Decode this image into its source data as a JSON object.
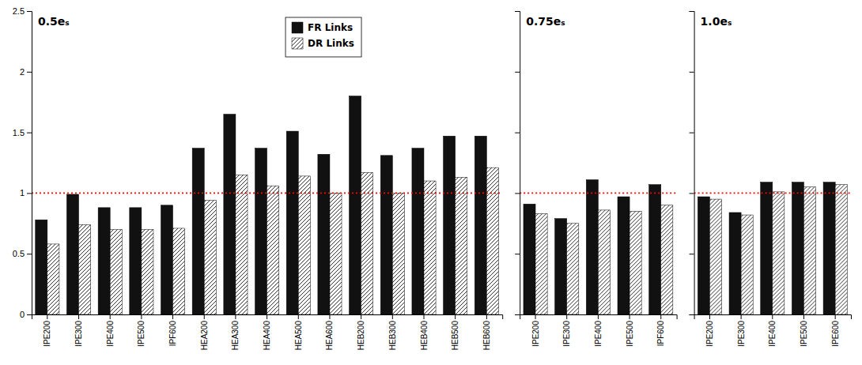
{
  "chart_data": [
    {
      "type": "bar",
      "title": "0.5eₛ",
      "categories": [
        "IPE200",
        "IPE300",
        "IPE400",
        "IPE500",
        "IPF600",
        "HEA200",
        "HEA300",
        "HEA400",
        "HEA500",
        "HEA600",
        "HEB200",
        "HEB300",
        "HEB400",
        "HEB500",
        "HEB600"
      ],
      "series": [
        {
          "name": "FR Links",
          "color": "#111111",
          "values": [
            0.78,
            0.99,
            0.88,
            0.88,
            0.9,
            1.37,
            1.65,
            1.37,
            1.51,
            1.32,
            1.8,
            1.31,
            1.37,
            1.47,
            1.47
          ]
        },
        {
          "name": "DR Links",
          "color": "white",
          "values": [
            0.58,
            0.74,
            0.7,
            0.7,
            0.71,
            0.94,
            1.15,
            1.06,
            1.14,
            1.0,
            1.17,
            1.0,
            1.1,
            1.13,
            1.21
          ]
        }
      ],
      "reference_line": {
        "value": 1.0,
        "color": "red"
      },
      "ylim": [
        0,
        2.5
      ],
      "yticks": [
        0,
        0.5,
        1,
        1.5,
        2,
        2.5
      ],
      "grid": false,
      "legend": "top"
    },
    {
      "type": "bar",
      "title": "0.75eₛ",
      "categories": [
        "IPE200",
        "IPE300",
        "IPE400",
        "IPE500",
        "IPF600"
      ],
      "series": [
        {
          "color": "#111111",
          "values": [
            0.91,
            0.79,
            1.11,
            0.97,
            1.07
          ]
        },
        {
          "color": "white",
          "values": [
            0.83,
            0.75,
            0.86,
            0.85,
            0.9
          ]
        }
      ],
      "reference_line": {
        "value": 1.0,
        "color": "red"
      },
      "ylim": [
        0,
        2.5
      ],
      "yticks": [
        0,
        0.5,
        1,
        1.5,
        2,
        2.5
      ],
      "grid": false,
      "tick_labels": "x"
    },
    {
      "type": "bar",
      "title": "1.0eₛ",
      "categories": [
        "IPE200",
        "IPE300",
        "IPE400",
        "IPE500",
        "IPE600"
      ],
      "series": [
        {
          "color": "#111111",
          "values": [
            0.97,
            0.84,
            1.09,
            1.09,
            1.09
          ]
        },
        {
          "color": "white",
          "values": [
            0.95,
            0.82,
            1.01,
            1.05,
            1.07
          ]
        }
      ],
      "reference_line": {
        "value": 1.0,
        "color": "red"
      },
      "ylim": [
        0,
        2.5
      ],
      "yticks": [
        0,
        0.5,
        1,
        1.5,
        2,
        2.5
      ],
      "grid": false,
      "tick_labels": "x"
    }
  ]
}
